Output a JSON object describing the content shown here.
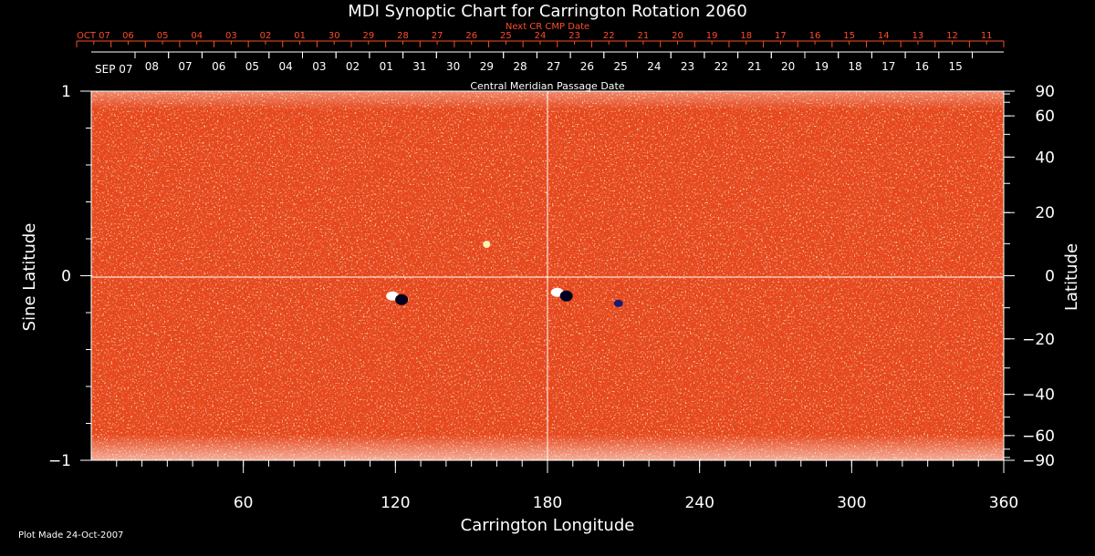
{
  "chart_data": {
    "type": "heatmap",
    "title": "MDI Synoptic Chart for Carrington Rotation 2060",
    "xlabel": "Carrington Longitude",
    "ylabel_left": "Sine Latitude",
    "ylabel_right": "Latitude",
    "xlim": [
      0,
      360
    ],
    "ylim": [
      -1,
      1
    ],
    "x_ticks": [
      60,
      120,
      180,
      240,
      300,
      360
    ],
    "y_ticks_left": [
      1,
      0,
      -1
    ],
    "y_ticks_right": [
      90,
      60,
      40,
      20,
      0,
      -20,
      -40,
      -60,
      -90
    ],
    "top_axis_next_label": "Next CR CMP Date",
    "top_axis_cmp_label": "Central Meridian Passage Date",
    "next_cr_dates": [
      "OCT 07",
      "06",
      "05",
      "04",
      "03",
      "02",
      "01",
      "30",
      "29",
      "28",
      "27",
      "26",
      "25",
      "24",
      "23",
      "22",
      "21",
      "20",
      "19",
      "18",
      "17",
      "16",
      "15",
      "14",
      "13",
      "12",
      "11"
    ],
    "cmp_dates": [
      "SEP 07",
      "08",
      "07",
      "06",
      "05",
      "04",
      "03",
      "02",
      "01",
      "31",
      "30",
      "29",
      "28",
      "27",
      "26",
      "25",
      "24",
      "23",
      "22",
      "21",
      "20",
      "19",
      "18",
      "17",
      "16",
      "15"
    ],
    "grid": "lines at longitude 180 and sine latitude 0",
    "colors": {
      "background": "#e8471c",
      "positive": "#ffffff",
      "negative": "#1a1a6e",
      "annotation": "#ff4a2a"
    },
    "active_regions": [
      {
        "lon": 121,
        "sinlat": -0.12,
        "polarity": "bipolar"
      },
      {
        "lon": 186,
        "sinlat": -0.1,
        "polarity": "bipolar"
      },
      {
        "lon": 208,
        "sinlat": -0.15,
        "polarity": "negative"
      },
      {
        "lon": 156,
        "sinlat": 0.17,
        "polarity": "positive"
      }
    ]
  },
  "footer": {
    "plot_made": "Plot Made 24-Oct-2007"
  }
}
